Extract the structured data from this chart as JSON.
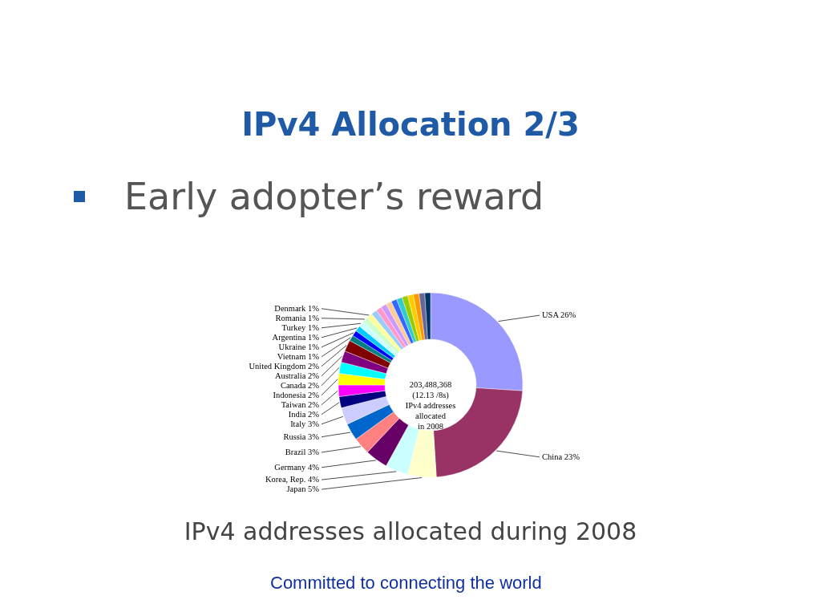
{
  "chart_data": {
    "type": "donut",
    "title": "IPv4 Allocation 2/3",
    "subtitle": "Early adopter’s reward",
    "categories": [
      "USA",
      "China",
      "Japan",
      "Korea, Rep.",
      "Germany",
      "Brazil",
      "Russia",
      "Italy",
      "India",
      "Taiwan",
      "Indonesia",
      "Canada",
      "Australia",
      "United Kingdom",
      "Vietnam",
      "Ukraine",
      "Argentina",
      "Turkey",
      "Romania",
      "Denmark",
      null,
      null,
      null,
      null,
      null,
      null,
      null,
      null,
      null,
      null,
      null
    ],
    "values": [
      26,
      23,
      5,
      4,
      4,
      3,
      3,
      3,
      2,
      2,
      2,
      2,
      2,
      2,
      1,
      1,
      1,
      1,
      1,
      1,
      1,
      1,
      1,
      1,
      1,
      1,
      1,
      1,
      1,
      1,
      1
    ],
    "value_labels": [
      "26%",
      "23%",
      "5%",
      "4%",
      "4%",
      "3%",
      "3%",
      "3%",
      "2%",
      "2%",
      "2%",
      "2%",
      "2%",
      "2%",
      "1%",
      "1%",
      "1%",
      "1%",
      "1%",
      "1%",
      null,
      null,
      null,
      null,
      null,
      null,
      null,
      null,
      null,
      null,
      null
    ],
    "colors": [
      "#9999ff",
      "#993366",
      "#ffffcc",
      "#ccffff",
      "#660066",
      "#ff8080",
      "#0066cc",
      "#ccccff",
      "#000080",
      "#ff00ff",
      "#ffff00",
      "#00ffff",
      "#800080",
      "#800000",
      "#008080",
      "#0000ff",
      "#00ccff",
      "#ccffff",
      "#ccffcc",
      "#ffff99",
      "#99ccff",
      "#ff99cc",
      "#cc99ff",
      "#ffcc99",
      "#3366ff",
      "#33cccc",
      "#99cc00",
      "#ffcc00",
      "#ff9900",
      "#666699",
      "#003366"
    ],
    "annotations": [
      "203,488,368\n(12.13 /8s)\nIPv4 addresses\nallocated\nin 2008",
      "IPv4 addresses allocated during 2008",
      "Committed to connecting the world"
    ]
  }
}
